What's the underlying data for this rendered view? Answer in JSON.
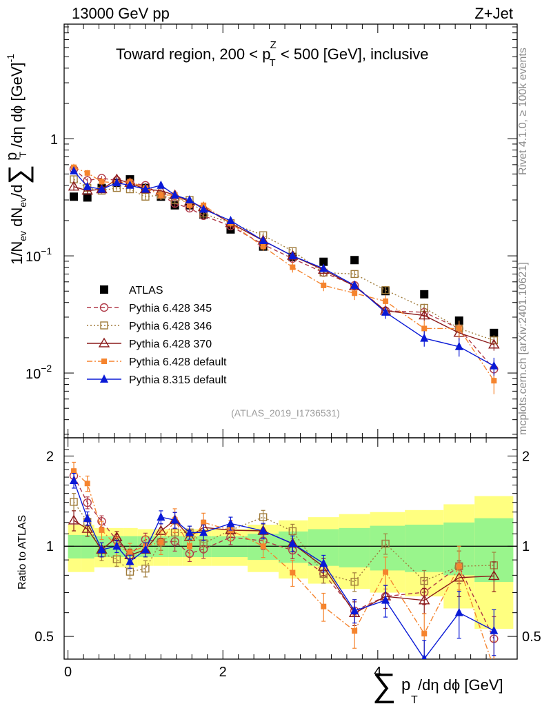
{
  "header": {
    "left": "13000 GeV pp",
    "right": "Z+Jet",
    "title_main": "Toward region, 200 < p",
    "title_sup": "Z",
    "title_sub": "T",
    "title_tail": " < 500 [GeV], inclusive",
    "analysis_id": "(ATLAS_2019_I1736531)"
  },
  "side": {
    "rivet": "Rivet 4.1.0, ≥ 100k events",
    "mcplots": "mcplots.cern.ch [arXiv:2401.10621]"
  },
  "axes": {
    "y_main_label": "1/N_ev dN_ev/d∑ p_T /dη dϕ [GeV]^-1",
    "y_main_parts": {
      "a": "1/N",
      "a_sub": "ev",
      "b": " dN",
      "b_sub": "ev",
      "c": "/d",
      "sigma": "∑",
      "d": " p",
      "d_sub": "T",
      "e": " /dη dϕ  [GeV]",
      "e_sup": "-1"
    },
    "y_ratio_label": "Ratio to ATLAS",
    "x_label_sigma": "∑",
    "x_label_p": "p",
    "x_label_sub": "T",
    "x_label_tail": " /dη dϕ [GeV]",
    "x_ticks": [
      "0",
      "2",
      "4"
    ],
    "y_main_ticks": [
      {
        "v": 1,
        "base": "1",
        "exp": ""
      },
      {
        "v": 0.1,
        "base": "10",
        "exp": "−1"
      },
      {
        "v": 0.01,
        "base": "10",
        "exp": "−2"
      }
    ],
    "y_ratio_ticks": [
      {
        "v": 2,
        "label": "2"
      },
      {
        "v": 1,
        "label": "1"
      },
      {
        "v": 0.5,
        "label": "0.5"
      }
    ]
  },
  "legend": [
    {
      "label": "ATLAS",
      "color": "#000000"
    },
    {
      "label": "Pythia 6.428 345",
      "color": "#b03a48"
    },
    {
      "label": "Pythia 6.428 346",
      "color": "#a07c3c"
    },
    {
      "label": "Pythia 6.428 370",
      "color": "#8b1a1a"
    },
    {
      "label": "Pythia 6.428 default",
      "color": "#f5842e"
    },
    {
      "label": "Pythia 8.315 default",
      "color": "#0a1ad6"
    }
  ],
  "chart_data": {
    "type": "scatter",
    "title": "Toward region, 200 < pT^Z < 500 [GeV], inclusive",
    "xlabel": "∑ pT /dη dϕ [GeV]",
    "ylabel": "1/Nev dNev/d∑ pT /dη dϕ [GeV]^-1",
    "xlim": [
      -0.05,
      5.8
    ],
    "ylim": [
      0.0028,
      9.5
    ],
    "yscale": "log",
    "ratio_ylim": [
      0.42,
      2.3
    ],
    "x": [
      0.075,
      0.25,
      0.435,
      0.63,
      0.8,
      1.0,
      1.2,
      1.38,
      1.57,
      1.75,
      2.1,
      2.52,
      2.9,
      3.3,
      3.7,
      4.1,
      4.6,
      5.05,
      5.5
    ],
    "band_edges": [
      0.0,
      0.17,
      0.34,
      0.52,
      0.71,
      0.9,
      1.1,
      1.3,
      1.48,
      1.66,
      1.85,
      2.32,
      2.72,
      3.1,
      3.5,
      3.9,
      4.35,
      4.85,
      5.25,
      5.75
    ],
    "band_green_half": [
      0.09,
      0.09,
      0.08,
      0.08,
      0.08,
      0.08,
      0.08,
      0.08,
      0.08,
      0.08,
      0.08,
      0.1,
      0.12,
      0.14,
      0.15,
      0.17,
      0.18,
      0.2,
      0.24
    ],
    "band_yellow_half": [
      0.18,
      0.18,
      0.15,
      0.15,
      0.15,
      0.14,
      0.14,
      0.14,
      0.14,
      0.14,
      0.14,
      0.18,
      0.22,
      0.25,
      0.28,
      0.3,
      0.32,
      0.38,
      0.47
    ],
    "series": [
      {
        "name": "ATLAS",
        "values": [
          0.32,
          0.315,
          0.38,
          0.42,
          0.45,
          0.38,
          0.32,
          0.27,
          0.27,
          0.225,
          0.168,
          0.12,
          0.098,
          0.089,
          0.092,
          0.05,
          0.047,
          0.028,
          0.022
        ]
      },
      {
        "name": "Pythia 6.428 345",
        "values": [
          0.55,
          0.44,
          0.46,
          0.44,
          0.42,
          0.4,
          0.33,
          0.28,
          0.255,
          0.22,
          0.18,
          0.125,
          0.095,
          0.072,
          0.056,
          0.034,
          0.033,
          0.024,
          0.0108
        ],
        "errors": [
          0.03,
          0.02,
          0.02,
          0.02,
          0.02,
          0.02,
          0.02,
          0.02,
          0.015,
          0.015,
          0.01,
          0.008,
          0.006,
          0.005,
          0.005,
          0.003,
          0.003,
          0.003,
          0.002
        ]
      },
      {
        "name": "Pythia 6.428 346",
        "values": [
          0.45,
          0.38,
          0.36,
          0.38,
          0.37,
          0.32,
          0.33,
          0.3,
          0.3,
          0.23,
          0.19,
          0.15,
          0.11,
          0.072,
          0.07,
          0.051,
          0.036,
          0.024,
          0.019
        ],
        "errors": [
          0.03,
          0.02,
          0.02,
          0.02,
          0.02,
          0.02,
          0.02,
          0.02,
          0.015,
          0.015,
          0.01,
          0.008,
          0.006,
          0.005,
          0.005,
          0.004,
          0.003,
          0.003,
          0.002
        ]
      },
      {
        "name": "Pythia 6.428 370",
        "values": [
          0.39,
          0.36,
          0.37,
          0.45,
          0.42,
          0.37,
          0.36,
          0.33,
          0.29,
          0.26,
          0.19,
          0.135,
          0.1,
          0.076,
          0.055,
          0.034,
          0.031,
          0.022,
          0.0175
        ],
        "errors": [
          0.03,
          0.02,
          0.02,
          0.02,
          0.02,
          0.02,
          0.02,
          0.02,
          0.015,
          0.015,
          0.01,
          0.008,
          0.006,
          0.005,
          0.005,
          0.003,
          0.003,
          0.003,
          0.002
        ]
      },
      {
        "name": "Pythia 6.428 default",
        "values": [
          0.57,
          0.51,
          0.43,
          0.42,
          0.43,
          0.38,
          0.33,
          0.33,
          0.27,
          0.27,
          0.19,
          0.12,
          0.08,
          0.056,
          0.048,
          0.041,
          0.024,
          0.024,
          0.0086
        ],
        "errors": [
          0.04,
          0.03,
          0.03,
          0.03,
          0.03,
          0.03,
          0.03,
          0.03,
          0.02,
          0.02,
          0.015,
          0.01,
          0.008,
          0.006,
          0.006,
          0.005,
          0.004,
          0.004,
          0.002
        ]
      },
      {
        "name": "Pythia 8.315 default",
        "values": [
          0.53,
          0.39,
          0.37,
          0.42,
          0.4,
          0.37,
          0.4,
          0.33,
          0.3,
          0.25,
          0.2,
          0.135,
          0.1,
          0.078,
          0.056,
          0.033,
          0.0198,
          0.0168,
          0.0115
        ],
        "errors": [
          0.03,
          0.02,
          0.02,
          0.02,
          0.02,
          0.02,
          0.02,
          0.02,
          0.015,
          0.015,
          0.01,
          0.008,
          0.006,
          0.005,
          0.005,
          0.004,
          0.003,
          0.003,
          0.002
        ]
      }
    ]
  }
}
